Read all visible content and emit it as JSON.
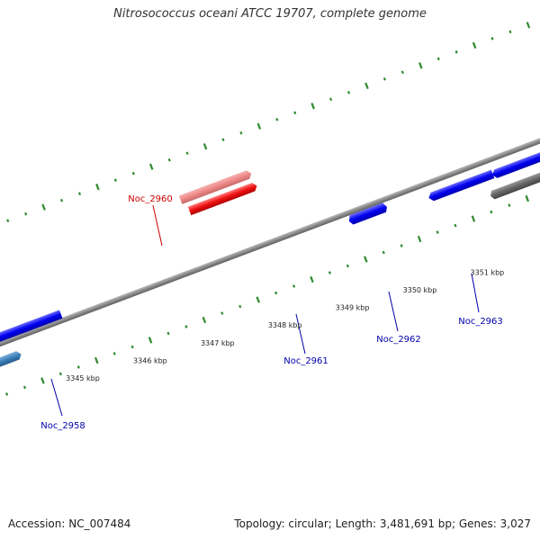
{
  "title": "Nitrosococcus oceani ATCC 19707, complete genome",
  "footer": {
    "accession": "Accession: NC_007484",
    "stats": "Topology: circular; Length: 3,481,691 bp; Genes: 3,027"
  },
  "colors": {
    "backbone": "#8a8a8a",
    "ticks": "#2e8b2e",
    "forward_gene": "#0000ee",
    "reverse_gene_highlight": "#ee1111",
    "reverse_gene_shadow": "#ee8888",
    "gray_gene": "#666666",
    "light_gray_gene": "#c8c8c8",
    "teal_gene": "#3c7fb8",
    "red_label": "#cc0000",
    "blue_label": "#0000aa"
  },
  "scale_labels": [
    "3345 kbp",
    "3346 kbp",
    "3347 kbp",
    "3348 kbp",
    "3349 kbp",
    "3350 kbp",
    "3351 kbp"
  ],
  "gene_labels": [
    {
      "id": "noc2958",
      "text": "Noc_2958",
      "color": "blue"
    },
    {
      "id": "noc2960",
      "text": "Noc_2960",
      "color": "red"
    },
    {
      "id": "noc2961",
      "text": "Noc_2961",
      "color": "blue"
    },
    {
      "id": "noc2962",
      "text": "Noc_2962",
      "color": "blue"
    },
    {
      "id": "noc2963",
      "text": "Noc_2963",
      "color": "blue"
    }
  ]
}
